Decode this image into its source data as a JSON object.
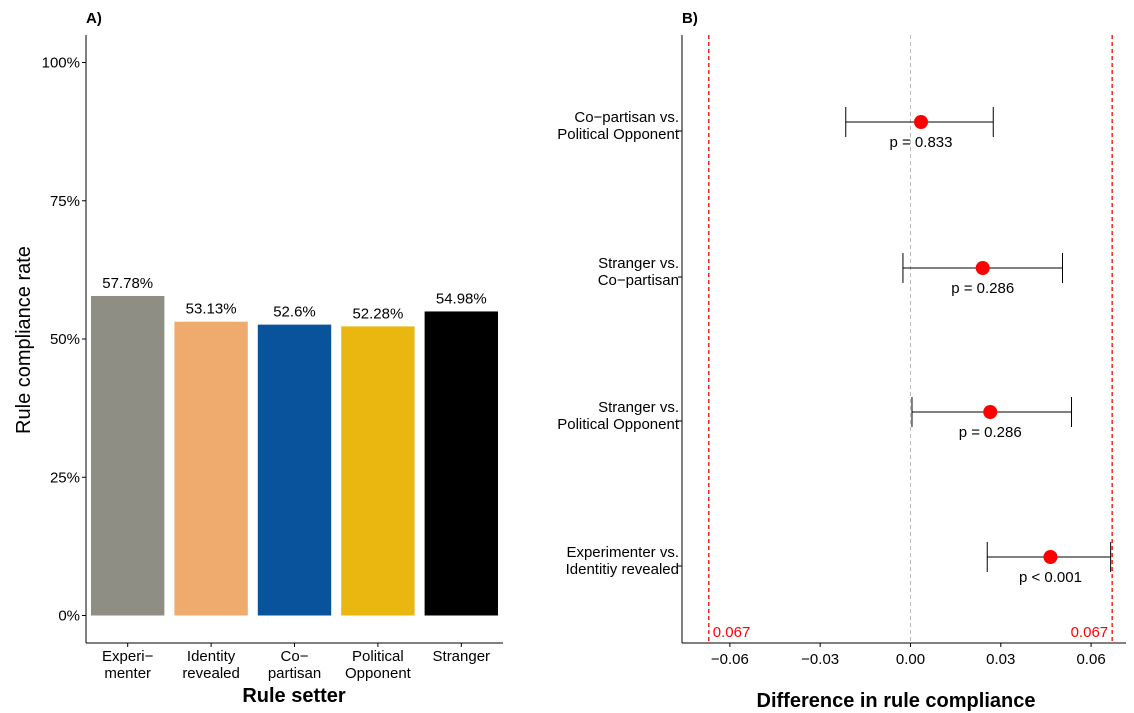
{
  "chart_data": [
    {
      "type": "bar",
      "panel_label": "A)",
      "categories": [
        [
          "Experi−",
          "menter"
        ],
        [
          "Identity",
          "revealed"
        ],
        [
          "Co−",
          "partisan"
        ],
        [
          "Political",
          "Opponent"
        ],
        [
          "Stranger"
        ]
      ],
      "values": [
        57.78,
        53.13,
        52.6,
        52.28,
        54.98
      ],
      "value_labels": [
        "57.78%",
        "53.13%",
        "52.6%",
        "52.28%",
        "54.98%"
      ],
      "colors": [
        "#8e8e84",
        "#efaa6e",
        "#08539b",
        "#e9b70f",
        "#000000"
      ],
      "xlabel": "Rule setter",
      "ylabel": "Rule compliance rate",
      "ylim": [
        0,
        100
      ],
      "yticks": [
        0,
        25,
        50,
        75,
        100
      ],
      "ytick_labels": [
        "0%",
        "25%",
        "50%",
        "75%",
        "100%"
      ],
      "grid": false
    },
    {
      "type": "scatter",
      "panel_label": "B)",
      "categories": [
        [
          "Co−partisan vs.",
          "Political Opponent"
        ],
        [
          "Stranger vs.",
          "Co−partisan"
        ],
        [
          "Stranger vs.",
          "Political Opponent"
        ],
        [
          "Experimenter vs.",
          "Identitiy revealed"
        ]
      ],
      "estimates": [
        0.0035,
        0.024,
        0.0265,
        0.0465
      ],
      "ci_low": [
        -0.0215,
        -0.0025,
        0.0005,
        0.0255
      ],
      "ci_high": [
        0.0275,
        0.0505,
        0.0535,
        0.0665
      ],
      "p_labels": [
        "p = 0.833",
        "p = 0.286",
        "p = 0.286",
        "p < 0.001"
      ],
      "point_color": "#ff0000",
      "xlabel": "Difference in rule compliance",
      "xlim": [
        -0.0759,
        0.0716
      ],
      "xticks": [
        -0.06,
        -0.03,
        0.0,
        0.03,
        0.06
      ],
      "xtick_labels": [
        "−0.06",
        "−0.03",
        "0.00",
        "0.03",
        "0.06"
      ],
      "zero_line_color": "#bbbbbb",
      "threshold_lines": [
        -0.067,
        0.067
      ],
      "threshold_labels": [
        "0.067",
        "0.067"
      ],
      "threshold_color": "#ff0000",
      "grid": false
    }
  ]
}
